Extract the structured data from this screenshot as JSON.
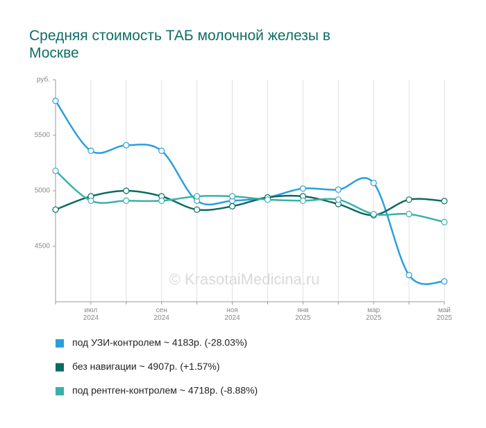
{
  "chart_data": {
    "type": "line",
    "title": "Средняя стоимость ТАБ молочной железы в Москве",
    "watermark": "© KrasotaiMedicina.ru",
    "categories": [
      null,
      "июл 2024",
      null,
      "сен 2024",
      null,
      "ноя 2024",
      null,
      "янв 2025",
      null,
      "мар 2025",
      null,
      "май 2025"
    ],
    "series": [
      {
        "name": "под УЗИ-контролем ~ 4183р. (-28.03%)",
        "color": "#2a9fdc",
        "values": [
          5810,
          5360,
          5410,
          5360,
          4910,
          4910,
          4940,
          5020,
          5010,
          5070,
          4240,
          4183
        ]
      },
      {
        "name": "без навигации ~ 4907р. (+1.57%)",
        "color": "#0b6b60",
        "values": [
          4830,
          4950,
          5000,
          4950,
          4830,
          4860,
          4940,
          4950,
          4880,
          4780,
          4920,
          4907
        ]
      },
      {
        "name": "под рентген-контролем ~ 4718р. (-8.88%)",
        "color": "#3bb0aa",
        "values": [
          5180,
          4910,
          4910,
          4910,
          4950,
          4950,
          4920,
          4910,
          4920,
          4790,
          4790,
          4718
        ]
      }
    ],
    "ylim": [
      4000,
      6000
    ],
    "yticks": [
      4500,
      5000,
      5500,
      {
        "value": 6000,
        "label": "руб."
      }
    ],
    "grid": true
  }
}
